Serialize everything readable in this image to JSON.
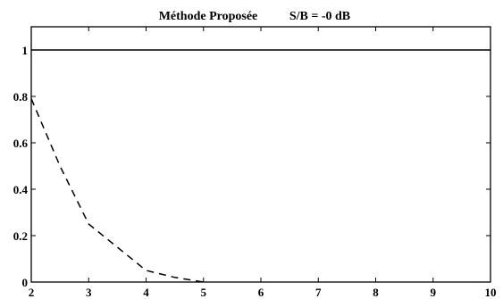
{
  "chart_data": {
    "type": "line",
    "title_method": "Méthode Proposée",
    "title_snr": "S/B = -0 dB",
    "xlabel": "",
    "ylabel": "",
    "xlim": [
      2,
      10
    ],
    "ylim": [
      0,
      1.1
    ],
    "x_ticks": [
      2,
      3,
      4,
      5,
      6,
      7,
      8,
      9,
      10
    ],
    "y_ticks": [
      0,
      0.2,
      0.4,
      0.6,
      0.8,
      1
    ],
    "y_tick_labels": [
      "0",
      "0.2",
      "0.4",
      "0.6",
      "0.8",
      "1"
    ],
    "grid": false,
    "series": [
      {
        "style": "solid",
        "color": "#000000",
        "x": [
          2,
          3,
          4,
          5,
          6,
          7,
          8,
          9,
          10
        ],
        "y": [
          1,
          1,
          1,
          1,
          1,
          1,
          1,
          1,
          1
        ]
      },
      {
        "style": "dashed",
        "color": "#000000",
        "x": [
          2,
          2.5,
          3,
          3.5,
          4,
          4.5,
          5
        ],
        "y": [
          0.79,
          0.5,
          0.25,
          0.15,
          0.05,
          0.02,
          0.0
        ]
      }
    ]
  }
}
